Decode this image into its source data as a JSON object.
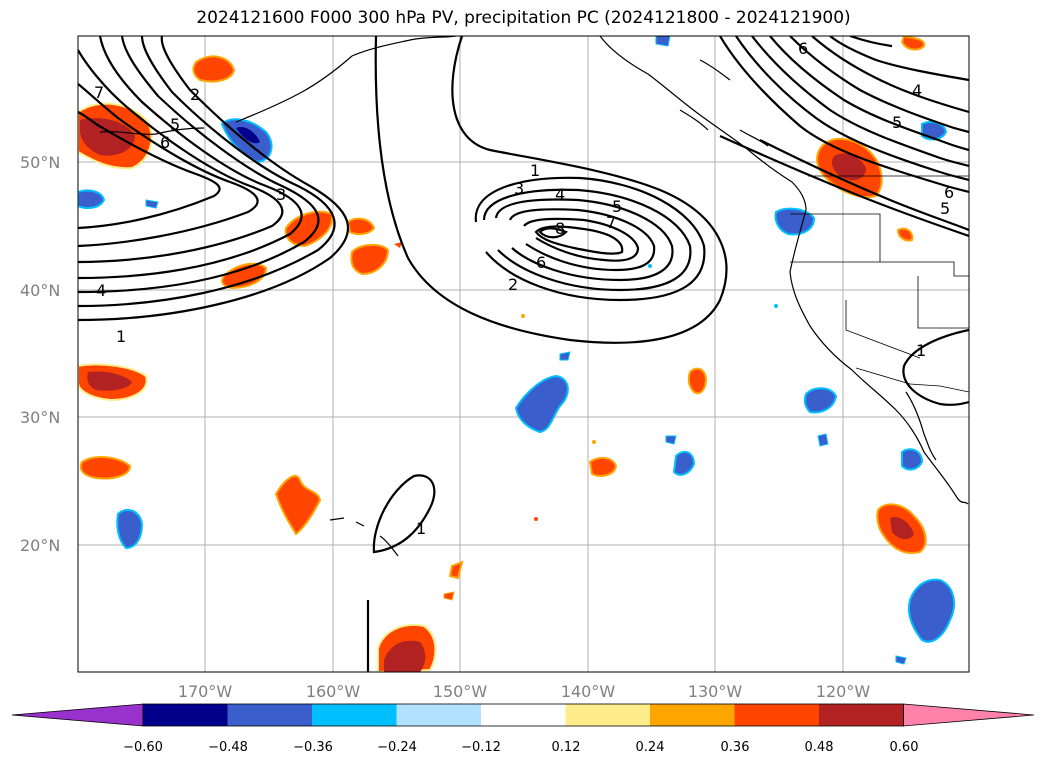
{
  "title": "2024121600 F000 300 hPa PV, precipitation PC (2024121800 - 2024121900)",
  "axes": {
    "lat_labels": [
      "50°N",
      "40°N",
      "30°N",
      "20°N"
    ],
    "lon_labels": [
      "170°W",
      "160°W",
      "150°W",
      "140°W",
      "130°W",
      "120°W"
    ]
  },
  "colorbar": {
    "ticks": [
      "−0.60",
      "−0.48",
      "−0.36",
      "−0.24",
      "−0.12",
      "0.12",
      "0.24",
      "0.36",
      "0.48",
      "0.60"
    ],
    "colors": [
      "#9932cc",
      "#00008b",
      "#3a5fcd",
      "#00bfff",
      "#b0e2ff",
      "#ffffff",
      "#ffec8b",
      "#ffa500",
      "#ff4500",
      "#b22222",
      "#ff82ab"
    ]
  },
  "contour_labels": [
    "7",
    "2",
    "5",
    "6",
    "3",
    "4",
    "1",
    "1",
    "3",
    "4",
    "5",
    "7",
    "8",
    "6",
    "2",
    "6",
    "4",
    "5",
    "6",
    "5",
    "1",
    "1"
  ],
  "colors": {
    "negative_fill": "#3a5fcd",
    "negative_light": "#00bfff",
    "positive_fill": "#ff4500",
    "positive_dark": "#b22222",
    "positive_light": "#ffa500",
    "positive_edge": "#ffec8b"
  }
}
